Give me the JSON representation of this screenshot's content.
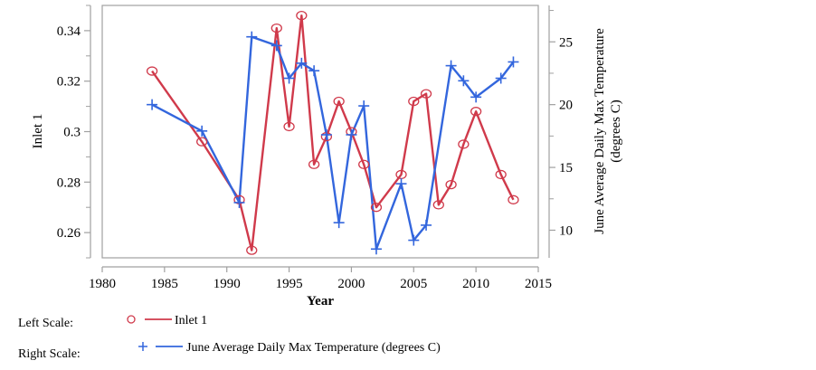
{
  "chart_data": {
    "type": "line",
    "title": "",
    "xlabel": "Year",
    "ylabel_left": "Inlet 1",
    "ylabel_right": [
      "June Average Daily Max Temperature",
      "(degrees C)"
    ],
    "xlim": [
      1980,
      2015
    ],
    "ylim_left": [
      0.25,
      0.35
    ],
    "ylim_right": [
      7.8,
      27.9
    ],
    "x_ticks": [
      1980,
      1985,
      1990,
      1995,
      2000,
      2005,
      2010,
      2015
    ],
    "x_tick_labels": [
      "1980",
      "1985",
      "1990",
      "1995",
      "2000",
      "2005",
      "2010",
      "2015"
    ],
    "y_left_ticks": [
      0.26,
      0.28,
      0.3,
      0.32,
      0.34
    ],
    "y_left_tick_labels": [
      "0.26",
      "0.28",
      "0.3",
      "0.32",
      "0.34"
    ],
    "y_left_minor_ticks": [
      0.25,
      0.27,
      0.29,
      0.31,
      0.33,
      0.35
    ],
    "y_right_ticks": [
      10,
      15,
      20,
      25
    ],
    "y_right_tick_labels": [
      "10",
      "15",
      "20",
      "25"
    ],
    "y_right_minor_ticks": [
      7.5,
      12.5,
      17.5,
      22.5,
      27.5
    ],
    "grid": false,
    "legend_position": "bottom-left",
    "series": [
      {
        "name": "Inlet 1",
        "axis": "left",
        "marker": "circle",
        "color": "#d03a4b",
        "x": [
          1984,
          1988,
          1991,
          1992,
          1994,
          1995,
          1996,
          1997,
          1998,
          1999,
          2000,
          2001,
          2002,
          2004,
          2005,
          2006,
          2007,
          2008,
          2009,
          2010,
          2012,
          2013
        ],
        "y": [
          0.324,
          0.296,
          0.273,
          0.253,
          0.341,
          0.302,
          0.346,
          0.287,
          0.298,
          0.312,
          0.3,
          0.287,
          0.27,
          0.283,
          0.312,
          0.315,
          0.271,
          0.279,
          0.295,
          0.308,
          0.283,
          0.273
        ]
      },
      {
        "name": "June Average Daily Max Temperature (degrees C)",
        "axis": "right",
        "marker": "plus",
        "color": "#3366dd",
        "x": [
          1984,
          1988,
          1991,
          1992,
          1994,
          1995,
          1996,
          1997,
          1998,
          1999,
          2000,
          2001,
          2002,
          2004,
          2005,
          2006,
          2008,
          2009,
          2010,
          2012,
          2013
        ],
        "y": [
          20.0,
          17.9,
          12.2,
          25.4,
          24.7,
          22.1,
          23.3,
          22.7,
          17.6,
          10.6,
          17.6,
          19.9,
          8.5,
          13.7,
          9.2,
          10.4,
          23.1,
          21.9,
          20.6,
          22.1,
          23.4
        ]
      }
    ]
  },
  "legend": {
    "left_scale_label": "Left Scale:",
    "right_scale_label": "Right Scale:",
    "left_series_name": "Inlet 1",
    "right_series_name": "June Average Daily Max Temperature (degrees C)"
  }
}
